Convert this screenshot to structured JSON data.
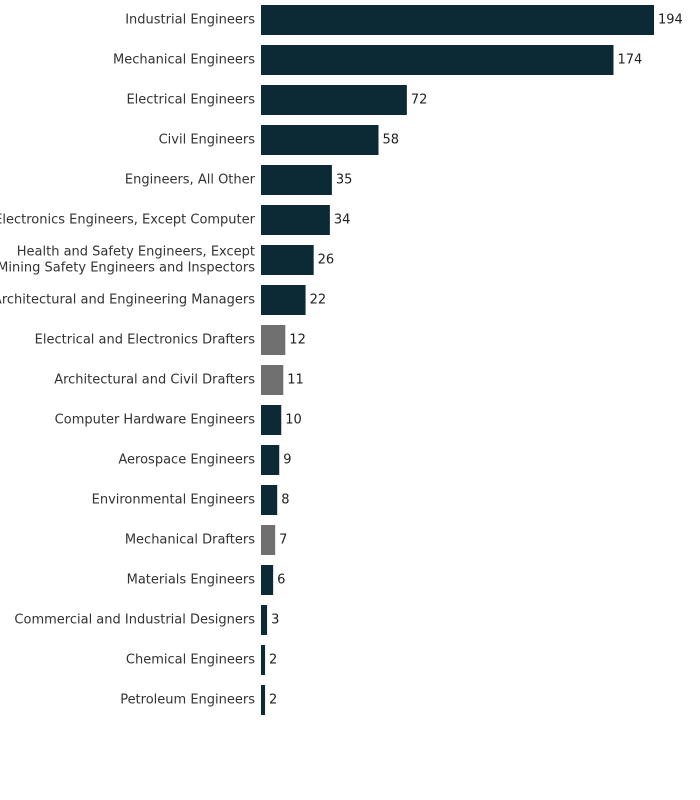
{
  "colors": {
    "primary": "#0b2a36",
    "secondary": "#707070"
  },
  "chart_data": {
    "type": "bar",
    "orientation": "horizontal",
    "title": "",
    "xlabel": "",
    "ylabel": "",
    "xlim": [
      0,
      194
    ],
    "grid": false,
    "legend": "none",
    "categories": [
      [
        "Industrial Engineers"
      ],
      [
        "Mechanical Engineers"
      ],
      [
        "Electrical Engineers"
      ],
      [
        "Civil Engineers"
      ],
      [
        "Engineers, All Other"
      ],
      [
        "Electronics Engineers, Except Computer"
      ],
      [
        "Health and Safety Engineers, Except",
        "Mining Safety Engineers and Inspectors"
      ],
      [
        "Architectural and Engineering Managers"
      ],
      [
        "Electrical and Electronics Drafters"
      ],
      [
        "Architectural and Civil Drafters"
      ],
      [
        "Computer Hardware Engineers"
      ],
      [
        "Aerospace Engineers"
      ],
      [
        "Environmental Engineers"
      ],
      [
        "Mechanical Drafters"
      ],
      [
        "Materials Engineers"
      ],
      [
        "Commercial and Industrial Designers"
      ],
      [
        "Chemical Engineers"
      ],
      [
        "Petroleum Engineers"
      ]
    ],
    "values": [
      194,
      174,
      72,
      58,
      35,
      34,
      26,
      22,
      12,
      11,
      10,
      9,
      8,
      7,
      6,
      3,
      2,
      2
    ],
    "bar_color_group": [
      "primary",
      "primary",
      "primary",
      "primary",
      "primary",
      "primary",
      "primary",
      "primary",
      "secondary",
      "secondary",
      "primary",
      "primary",
      "primary",
      "secondary",
      "primary",
      "primary",
      "primary",
      "primary"
    ]
  }
}
